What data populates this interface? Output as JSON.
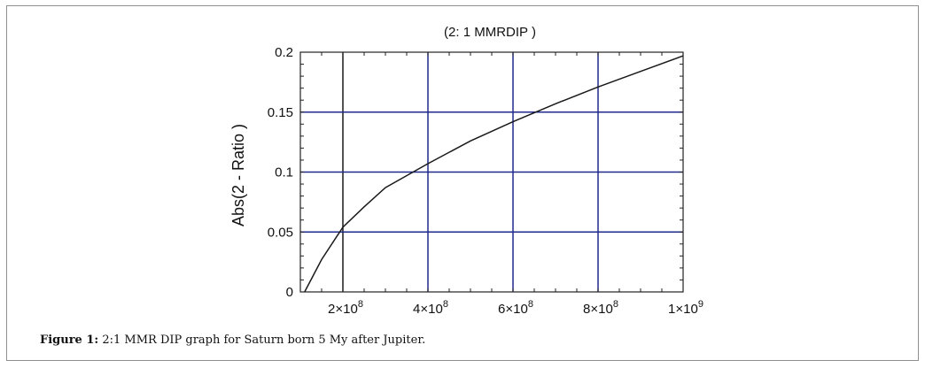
{
  "caption": {
    "label": "Figure 1:",
    "text": "2:1 MMR DIP graph for Saturn born 5 My after Jupiter."
  },
  "chart_data": {
    "type": "line",
    "title": "(2: 1  MMRDIP )",
    "xlabel": "",
    "ylabel": "Abs(2 - Ratio )",
    "xlim": [
      100000000,
      1000000000
    ],
    "ylim": [
      0,
      0.2
    ],
    "x_ticks": [
      {
        "value": 200000000,
        "mant": "2",
        "exp": "8"
      },
      {
        "value": 400000000,
        "mant": "4",
        "exp": "8"
      },
      {
        "value": 600000000,
        "mant": "6",
        "exp": "8"
      },
      {
        "value": 800000000,
        "mant": "8",
        "exp": "8"
      },
      {
        "value": 1000000000,
        "mant": "1",
        "exp": "9"
      }
    ],
    "y_ticks": [
      "0",
      "0.05",
      "0.1",
      "0.15",
      "0.2"
    ],
    "grid": true,
    "colors": {
      "grid": "#1f2a8c",
      "line": "#1a1a1a",
      "special_gridline": "#1a1a1a"
    },
    "series": [
      {
        "x": [
          110000000,
          150000000,
          200000000,
          250000000,
          300000000,
          400000000,
          500000000,
          600000000,
          700000000,
          800000000,
          900000000,
          1000000000
        ],
        "y": [
          0.0,
          0.027,
          0.054,
          0.071,
          0.087,
          0.107,
          0.126,
          0.142,
          0.157,
          0.171,
          0.184,
          0.197
        ]
      }
    ]
  }
}
